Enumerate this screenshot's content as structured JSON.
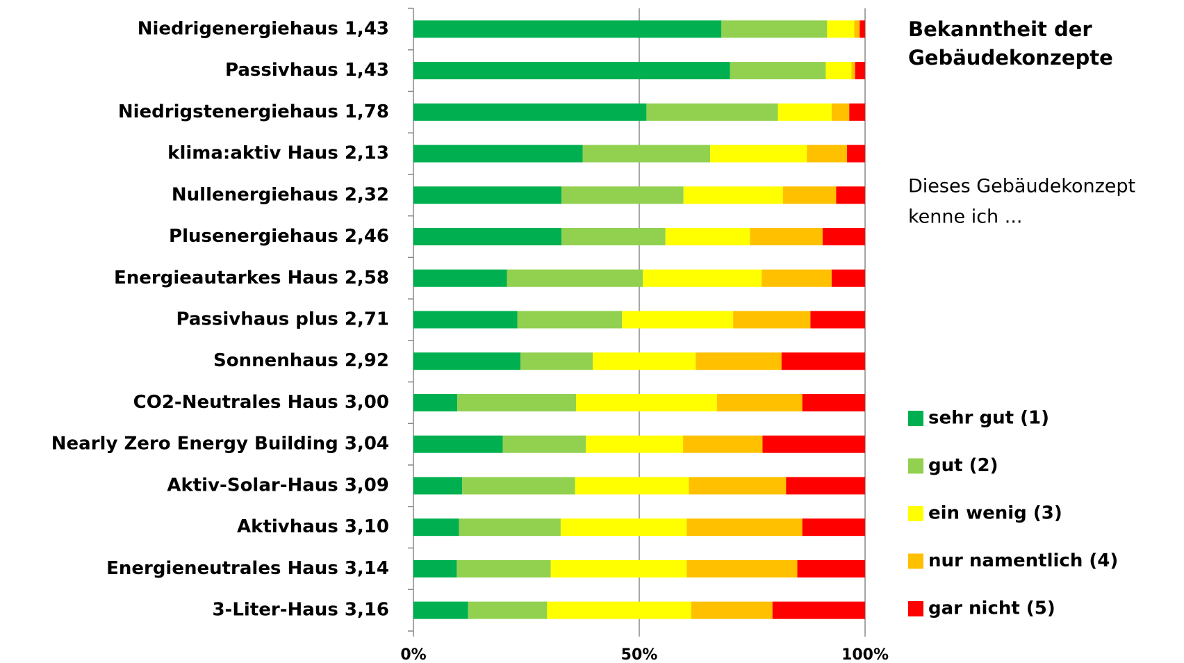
{
  "chart_data": {
    "type": "stacked_bar_horizontal",
    "title": [
      "Bekanntheit der",
      "Gebäudekonzepte"
    ],
    "subtitle": [
      "Dieses Gebäudekonzept",
      "kenne ich ..."
    ],
    "categories": [
      "Niedrigenergiehaus 1,43",
      "Passivhaus 1,43",
      "Niedrigstenergiehaus 1,78",
      "klima:aktiv Haus 2,13",
      "Nullenergiehaus 2,32",
      "Plusenergiehaus 2,46",
      "Energieautarkes Haus 2,58",
      "Passivhaus plus 2,71",
      "Sonnenhaus 2,92",
      "CO2-Neutrales Haus 3,00",
      "Nearly Zero Energy Building 3,04",
      "Aktiv-Solar-Haus 3,09",
      "Aktivhaus 3,10",
      "Energieneutrales Haus 3,14",
      "3-Liter-Haus 3,16"
    ],
    "series": [
      {
        "name": "sehr gut (1)",
        "color": "#00b050",
        "values": [
          68.2,
          70.1,
          51.6,
          37.5,
          32.8,
          32.8,
          20.7,
          23.0,
          23.7,
          9.7,
          19.8,
          10.8,
          10.1,
          9.6,
          12.1
        ]
      },
      {
        "name": "gut (2)",
        "color": "#92d050",
        "values": [
          23.4,
          21.2,
          29.1,
          28.2,
          27.0,
          23.0,
          30.1,
          23.2,
          16.0,
          26.3,
          18.4,
          25.0,
          22.5,
          20.8,
          17.5
        ]
      },
      {
        "name": "ein wenig (3)",
        "color": "#ffff00",
        "values": [
          6.0,
          5.7,
          11.9,
          21.4,
          22.0,
          18.7,
          26.3,
          24.6,
          22.8,
          31.2,
          21.5,
          25.2,
          27.9,
          30.1,
          31.9
        ]
      },
      {
        "name": "nur namentlich (4)",
        "color": "#ffc000",
        "values": [
          1.2,
          0.8,
          3.9,
          8.9,
          11.8,
          16.1,
          15.5,
          17.1,
          19.0,
          18.9,
          17.6,
          21.5,
          25.6,
          24.5,
          18.0
        ]
      },
      {
        "name": "gar nicht (5)",
        "color": "#ff0000",
        "values": [
          1.2,
          2.2,
          3.5,
          4.0,
          6.4,
          9.4,
          7.4,
          12.1,
          18.5,
          13.9,
          22.7,
          17.5,
          13.9,
          15.0,
          20.5
        ]
      }
    ],
    "xlim": [
      0,
      100
    ],
    "xticks": [
      {
        "value": 0,
        "label": "0%"
      },
      {
        "value": 50,
        "label": "50%"
      },
      {
        "value": 100,
        "label": "100%"
      }
    ],
    "grid": true
  }
}
